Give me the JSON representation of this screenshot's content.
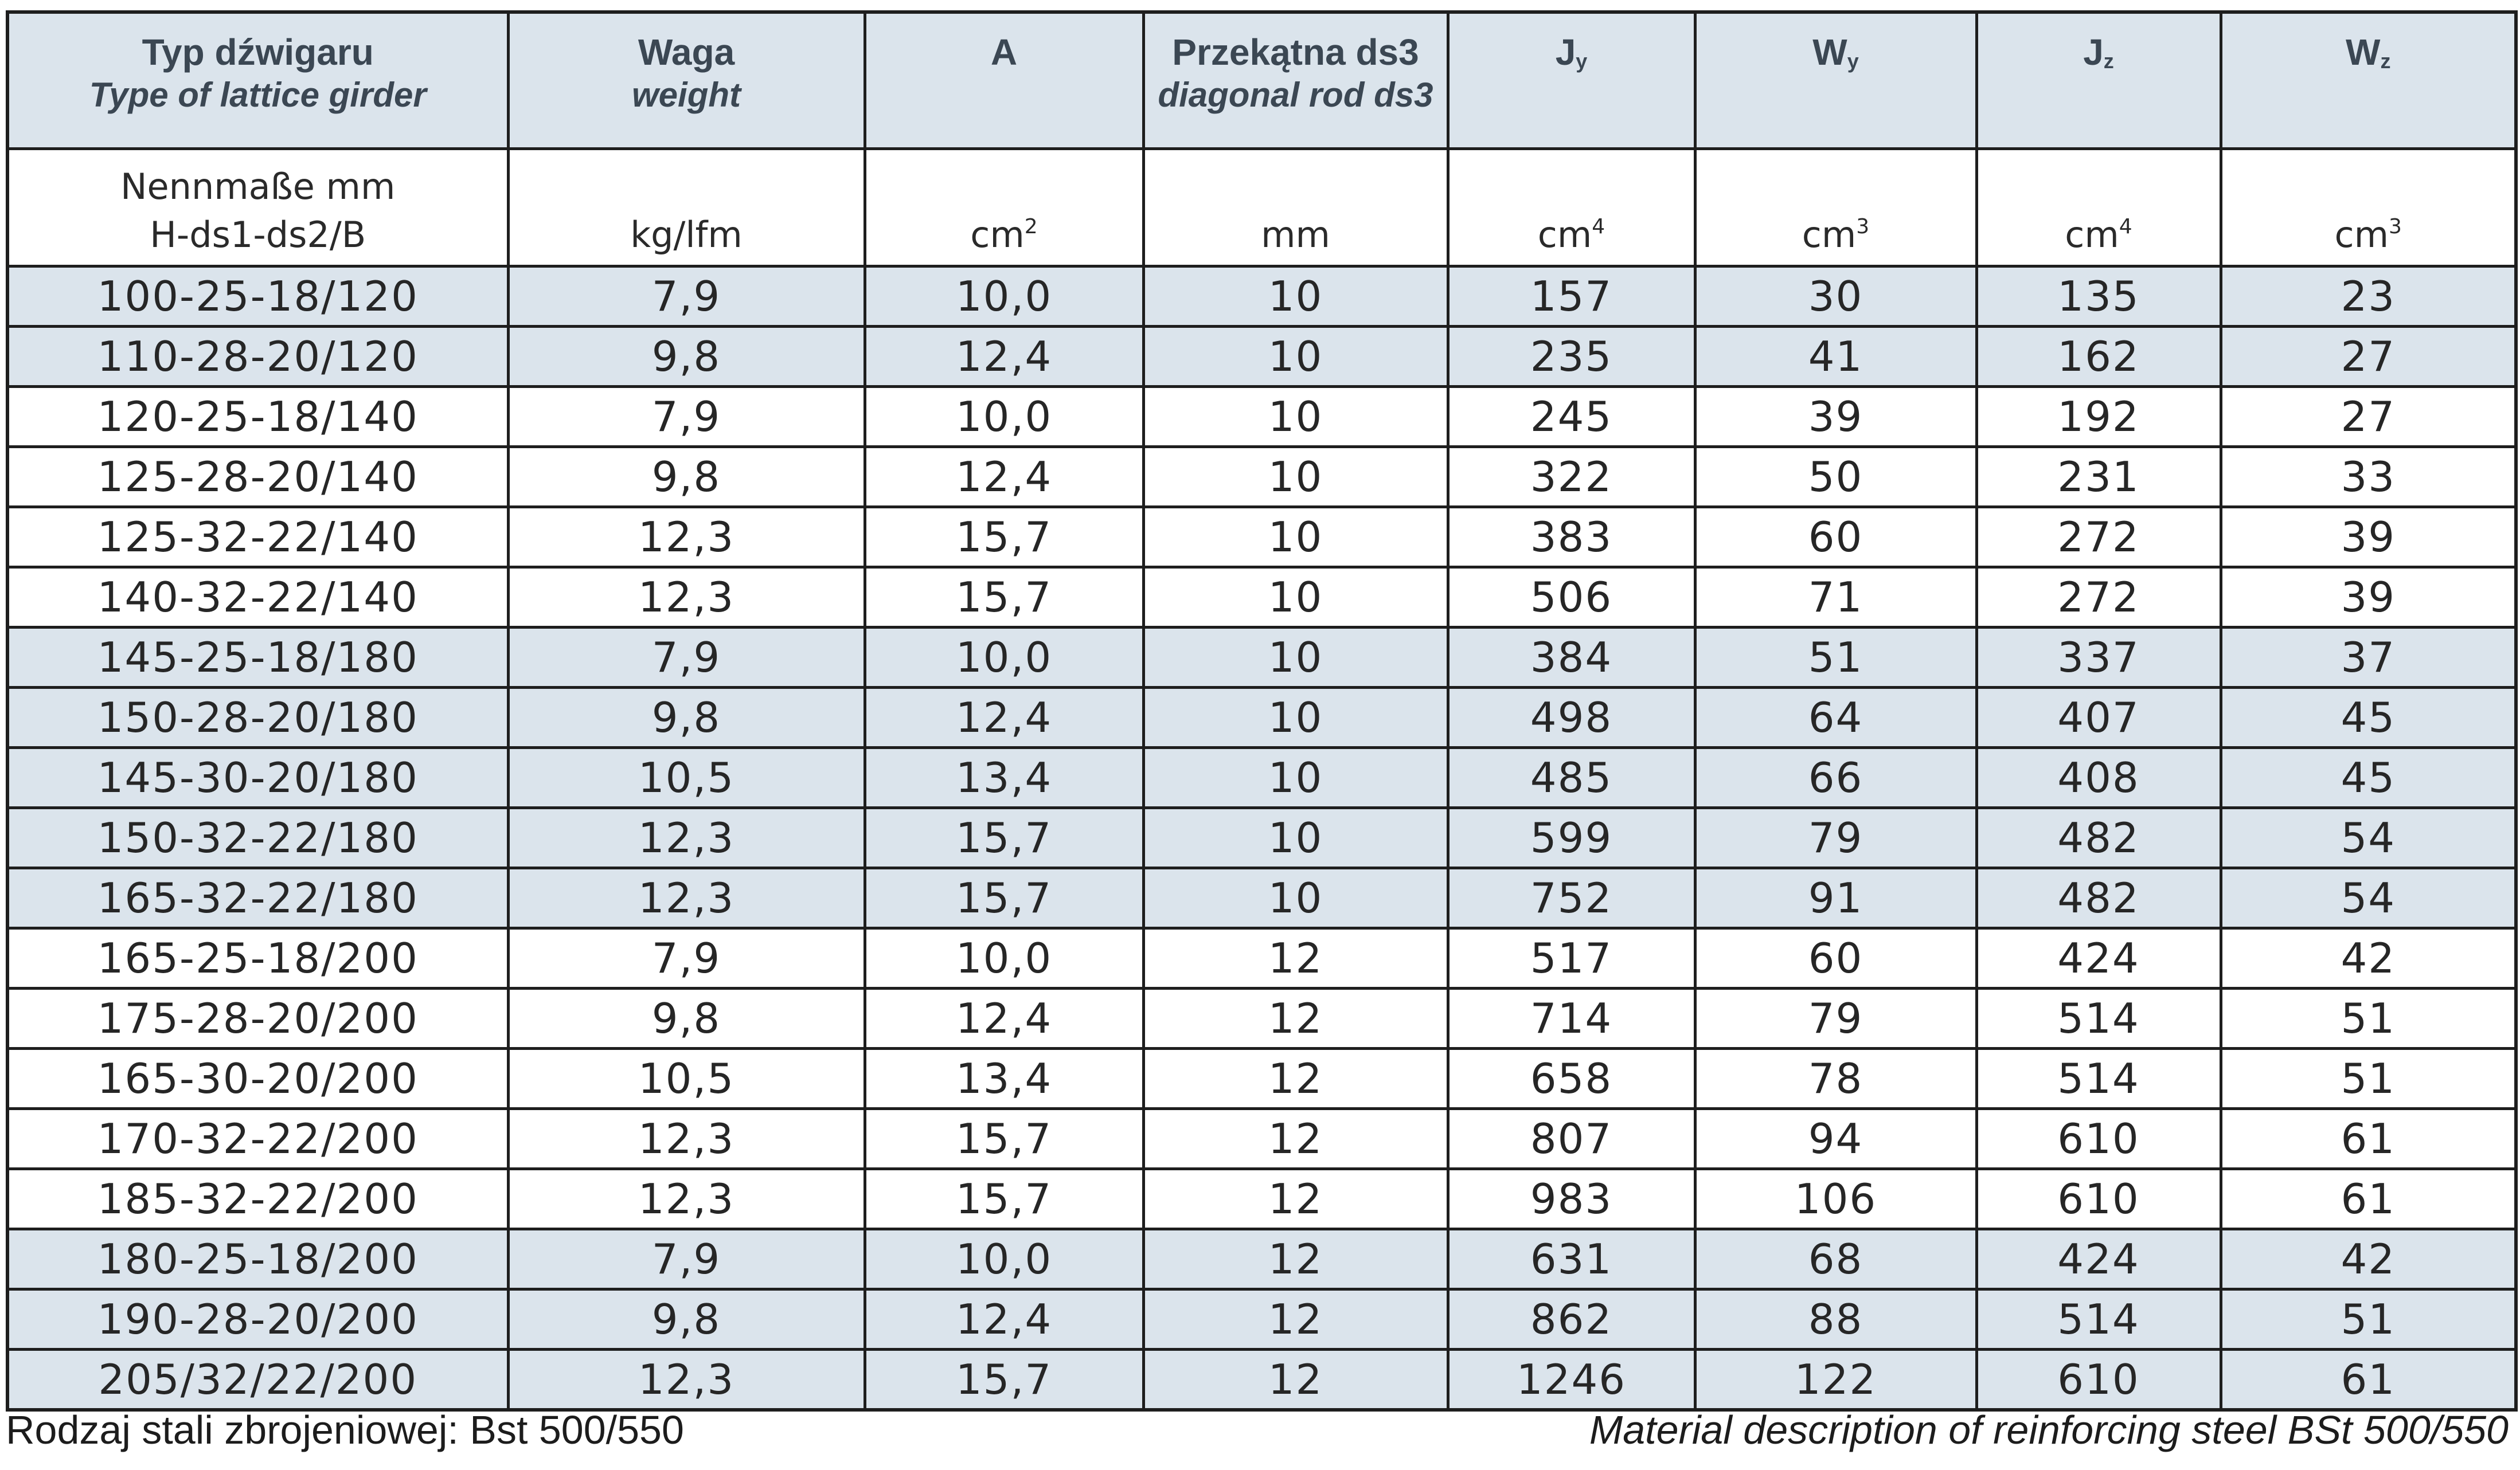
{
  "header": {
    "type_pl": "Typ dźwigaru",
    "type_en": "Type of lattice girder",
    "weight_pl": "Waga",
    "weight_en": "weight",
    "area": "A",
    "diag_pl": "Przekątna ds3",
    "diag_en": "diagonal rod ds3",
    "jy": "J",
    "jy_sub": "y",
    "wy": "W",
    "wy_sub": "y",
    "jz": "J",
    "jz_sub": "z",
    "wz": "W",
    "wz_sub": "z"
  },
  "units": {
    "nenn_line1": "Nennmaße mm",
    "nenn_line2": "H-ds1-ds2/B",
    "weight": "kg/lfm",
    "area": "cm",
    "area_exp": "2",
    "diag": "mm",
    "jy": "cm",
    "jy_exp": "4",
    "wy": "cm",
    "wy_exp": "3",
    "jz": "cm",
    "jz_exp": "4",
    "wz": "cm",
    "wz_exp": "3"
  },
  "rows": [
    {
      "type": "100-25-18/120",
      "weight": "7,9",
      "a": "10,0",
      "ds3": "10",
      "jy": "157",
      "wy": "30",
      "jz": "135",
      "wz": "23"
    },
    {
      "type": "110-28-20/120",
      "weight": "9,8",
      "a": "12,4",
      "ds3": "10",
      "jy": "235",
      "wy": "41",
      "jz": "162",
      "wz": "27"
    },
    {
      "type": "120-25-18/140",
      "weight": "7,9",
      "a": "10,0",
      "ds3": "10",
      "jy": "245",
      "wy": "39",
      "jz": "192",
      "wz": "27"
    },
    {
      "type": "125-28-20/140",
      "weight": "9,8",
      "a": "12,4",
      "ds3": "10",
      "jy": "322",
      "wy": "50",
      "jz": "231",
      "wz": "33"
    },
    {
      "type": "125-32-22/140",
      "weight": "12,3",
      "a": "15,7",
      "ds3": "10",
      "jy": "383",
      "wy": "60",
      "jz": "272",
      "wz": "39"
    },
    {
      "type": "140-32-22/140",
      "weight": "12,3",
      "a": "15,7",
      "ds3": "10",
      "jy": "506",
      "wy": "71",
      "jz": "272",
      "wz": "39"
    },
    {
      "type": "145-25-18/180",
      "weight": "7,9",
      "a": "10,0",
      "ds3": "10",
      "jy": "384",
      "wy": "51",
      "jz": "337",
      "wz": "37"
    },
    {
      "type": "150-28-20/180",
      "weight": "9,8",
      "a": "12,4",
      "ds3": "10",
      "jy": "498",
      "wy": "64",
      "jz": "407",
      "wz": "45"
    },
    {
      "type": "145-30-20/180",
      "weight": "10,5",
      "a": "13,4",
      "ds3": "10",
      "jy": "485",
      "wy": "66",
      "jz": "408",
      "wz": "45"
    },
    {
      "type": "150-32-22/180",
      "weight": "12,3",
      "a": "15,7",
      "ds3": "10",
      "jy": "599",
      "wy": "79",
      "jz": "482",
      "wz": "54"
    },
    {
      "type": "165-32-22/180",
      "weight": "12,3",
      "a": "15,7",
      "ds3": "10",
      "jy": "752",
      "wy": "91",
      "jz": "482",
      "wz": "54"
    },
    {
      "type": "165-25-18/200",
      "weight": "7,9",
      "a": "10,0",
      "ds3": "12",
      "jy": "517",
      "wy": "60",
      "jz": "424",
      "wz": "42"
    },
    {
      "type": "175-28-20/200",
      "weight": "9,8",
      "a": "12,4",
      "ds3": "12",
      "jy": "714",
      "wy": "79",
      "jz": "514",
      "wz": "51"
    },
    {
      "type": "165-30-20/200",
      "weight": "10,5",
      "a": "13,4",
      "ds3": "12",
      "jy": "658",
      "wy": "78",
      "jz": "514",
      "wz": "51"
    },
    {
      "type": "170-32-22/200",
      "weight": "12,3",
      "a": "15,7",
      "ds3": "12",
      "jy": "807",
      "wy": "94",
      "jz": "610",
      "wz": "61"
    },
    {
      "type": "185-32-22/200",
      "weight": "12,3",
      "a": "15,7",
      "ds3": "12",
      "jy": "983",
      "wy": "106",
      "jz": "610",
      "wz": "61"
    },
    {
      "type": "180-25-18/200",
      "weight": "7,9",
      "a": "10,0",
      "ds3": "12",
      "jy": "631",
      "wy": "68",
      "jz": "424",
      "wz": "42"
    },
    {
      "type": "190-28-20/200",
      "weight": "9,8",
      "a": "12,4",
      "ds3": "12",
      "jy": "862",
      "wy": "88",
      "jz": "514",
      "wz": "51"
    },
    {
      "type": "205/32/22/200",
      "weight": "12,3",
      "a": "15,7",
      "ds3": "12",
      "jy": "1246",
      "wy": "122",
      "jz": "610",
      "wz": "61"
    }
  ],
  "row_shading": [
    "shaded",
    "shaded",
    "plain",
    "plain",
    "plain",
    "plain",
    "shaded",
    "shaded",
    "shaded",
    "shaded",
    "shaded",
    "plain",
    "plain",
    "plain",
    "plain",
    "plain",
    "shaded",
    "shaded",
    "shaded"
  ],
  "colors": {
    "header_bg": "#dbe4ec",
    "shaded_row_bg": "#dbe4ec",
    "header_text": "#3b4753",
    "grid": "#1e1e1e"
  },
  "footer": {
    "left": "Rodzaj stali zbrojeniowej: Bst 500/550",
    "right": "Material description of reinforcing steel BSt 500/550"
  }
}
